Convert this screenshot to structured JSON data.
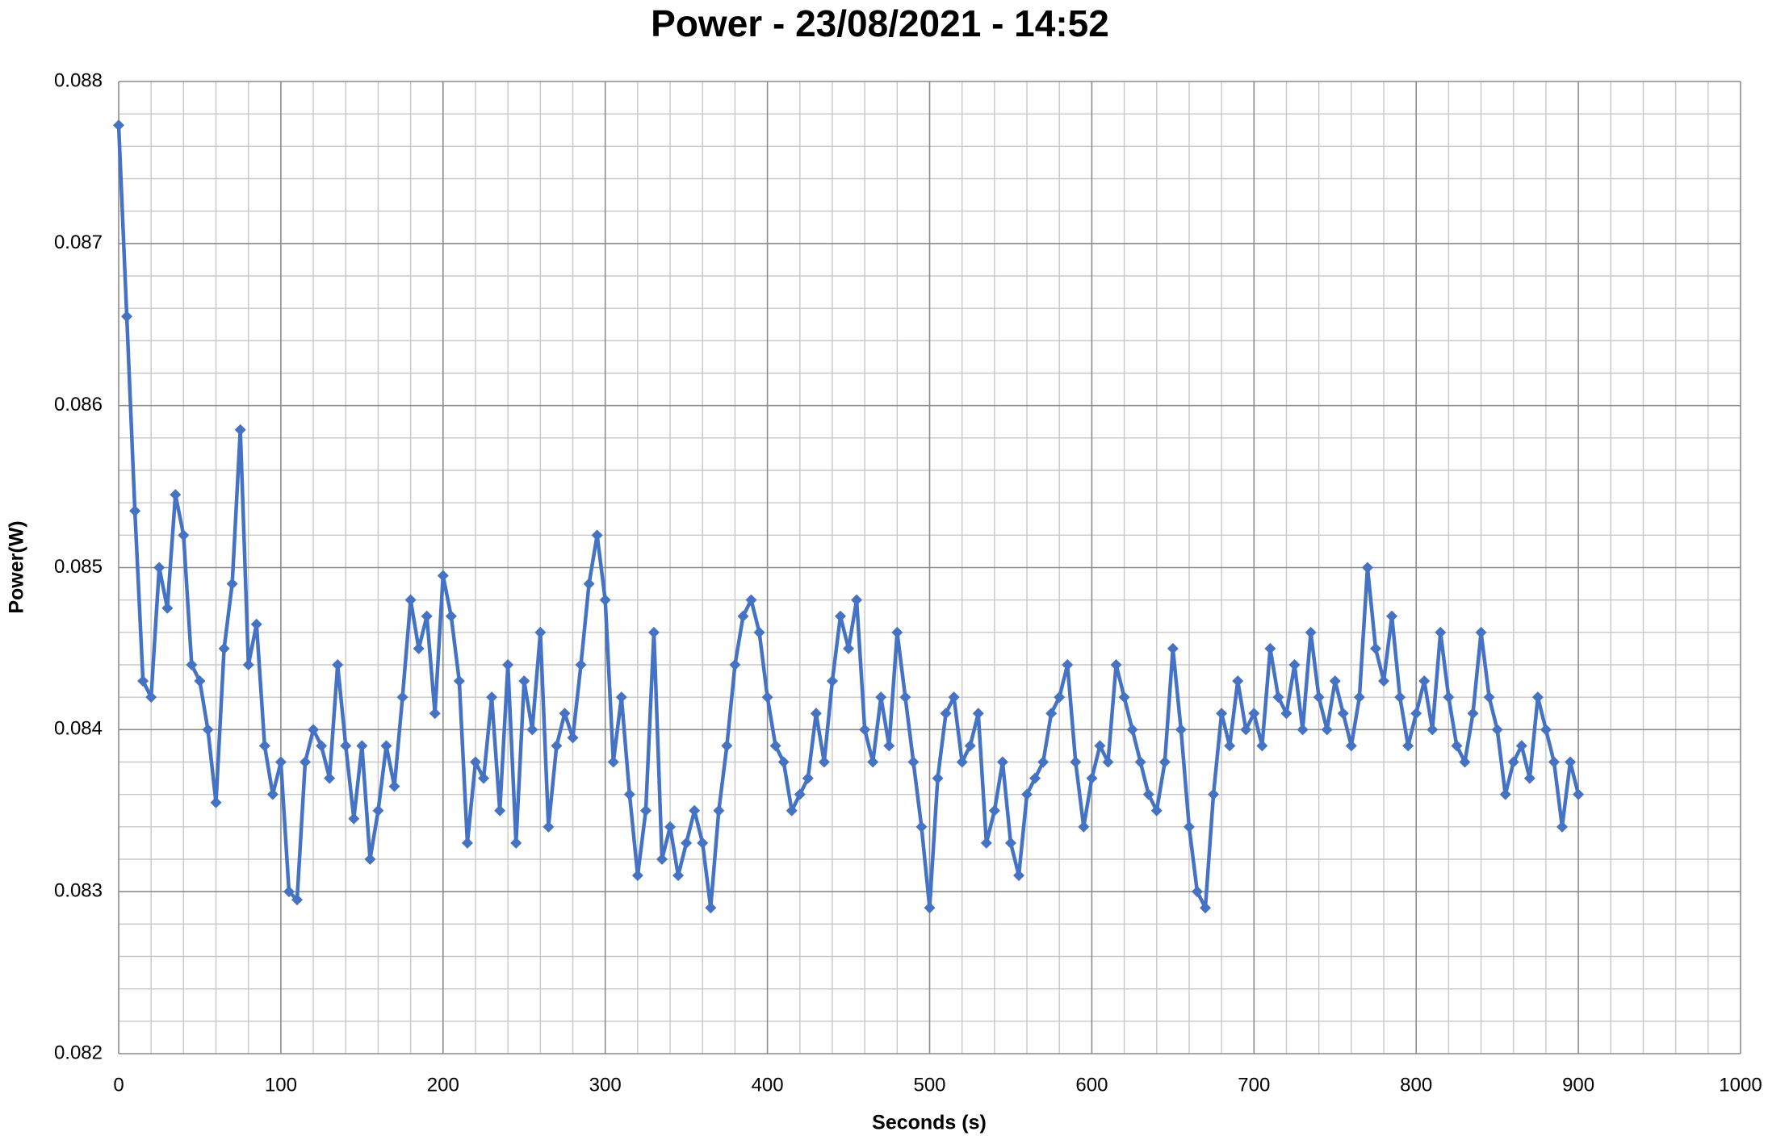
{
  "chart_data": {
    "type": "line",
    "title": "Power - 23/08/2021 - 14:52",
    "x_label": "Seconds (s)",
    "y_label": "Power(W)",
    "xlim": [
      0,
      1000
    ],
    "xticks": [
      0,
      100,
      200,
      300,
      400,
      500,
      600,
      700,
      800,
      900,
      1000
    ],
    "ylim": [
      0.082,
      0.088
    ],
    "yticks": [
      0.082,
      0.083,
      0.084,
      0.085,
      0.086,
      0.087,
      0.088
    ],
    "grid": true,
    "minor_grid": true,
    "marker": "diamond",
    "x": [
      0,
      5,
      10,
      15,
      20,
      25,
      30,
      35,
      40,
      45,
      50,
      55,
      60,
      65,
      70,
      75,
      80,
      85,
      90,
      95,
      100,
      105,
      110,
      115,
      120,
      125,
      130,
      135,
      140,
      145,
      150,
      155,
      160,
      165,
      170,
      175,
      180,
      185,
      190,
      195,
      200,
      205,
      210,
      215,
      220,
      225,
      230,
      235,
      240,
      245,
      250,
      255,
      260,
      265,
      270,
      275,
      280,
      285,
      290,
      295,
      300,
      305,
      310,
      315,
      320,
      325,
      330,
      335,
      340,
      345,
      350,
      355,
      360,
      365,
      370,
      375,
      380,
      385,
      390,
      395,
      400,
      405,
      410,
      415,
      420,
      425,
      430,
      435,
      440,
      445,
      450,
      455,
      460,
      465,
      470,
      475,
      480,
      485,
      490,
      495,
      500,
      505,
      510,
      515,
      520,
      525,
      530,
      535,
      540,
      545,
      550,
      555,
      560,
      565,
      570,
      575,
      580,
      585,
      590,
      595,
      600,
      605,
      610,
      615,
      620,
      625,
      630,
      635,
      640,
      645,
      650,
      655,
      660,
      665,
      670,
      675,
      680,
      685,
      690,
      695,
      700,
      705,
      710,
      715,
      720,
      725,
      730,
      735,
      740,
      745,
      750,
      755,
      760,
      765,
      770,
      775,
      780,
      785,
      790,
      795,
      800,
      805,
      810,
      815,
      820,
      825,
      830,
      835,
      840,
      845,
      850,
      855,
      860,
      865,
      870,
      875,
      880,
      885,
      890,
      895,
      900
    ],
    "series": [
      {
        "name": "Power",
        "color": "#4472c4",
        "values": [
          0.08773,
          0.08655,
          0.08535,
          0.0843,
          0.0842,
          0.085,
          0.08475,
          0.08545,
          0.0852,
          0.0844,
          0.0843,
          0.084,
          0.08355,
          0.0845,
          0.0849,
          0.08585,
          0.0844,
          0.08465,
          0.0839,
          0.0836,
          0.0838,
          0.083,
          0.08295,
          0.0838,
          0.084,
          0.0839,
          0.0837,
          0.0844,
          0.0839,
          0.08345,
          0.0839,
          0.0832,
          0.0835,
          0.0839,
          0.08365,
          0.0842,
          0.0848,
          0.0845,
          0.0847,
          0.0841,
          0.08495,
          0.0847,
          0.0843,
          0.0833,
          0.0838,
          0.0837,
          0.0842,
          0.0835,
          0.0844,
          0.0833,
          0.0843,
          0.084,
          0.0846,
          0.0834,
          0.0839,
          0.0841,
          0.08395,
          0.0844,
          0.0849,
          0.0852,
          0.0848,
          0.0838,
          0.0842,
          0.0836,
          0.0831,
          0.0835,
          0.0846,
          0.0832,
          0.0834,
          0.0831,
          0.0833,
          0.0835,
          0.0833,
          0.0829,
          0.0835,
          0.0839,
          0.0844,
          0.0847,
          0.0848,
          0.0846,
          0.0842,
          0.0839,
          0.0838,
          0.0835,
          0.0836,
          0.0837,
          0.0841,
          0.0838,
          0.0843,
          0.0847,
          0.0845,
          0.0848,
          0.084,
          0.0838,
          0.0842,
          0.0839,
          0.0846,
          0.0842,
          0.0838,
          0.0834,
          0.0829,
          0.0837,
          0.0841,
          0.0842,
          0.0838,
          0.0839,
          0.0841,
          0.0833,
          0.0835,
          0.0838,
          0.0833,
          0.0831,
          0.0836,
          0.0837,
          0.0838,
          0.0841,
          0.0842,
          0.0844,
          0.0838,
          0.0834,
          0.0837,
          0.0839,
          0.0838,
          0.0844,
          0.0842,
          0.084,
          0.0838,
          0.0836,
          0.0835,
          0.0838,
          0.0845,
          0.084,
          0.0834,
          0.083,
          0.0829,
          0.0836,
          0.0841,
          0.0839,
          0.0843,
          0.084,
          0.0841,
          0.0839,
          0.0845,
          0.0842,
          0.0841,
          0.0844,
          0.084,
          0.0846,
          0.0842,
          0.084,
          0.0843,
          0.0841,
          0.0839,
          0.0842,
          0.085,
          0.0845,
          0.0843,
          0.0847,
          0.0842,
          0.0839,
          0.0841,
          0.0843,
          0.084,
          0.0846,
          0.0842,
          0.0839,
          0.0838,
          0.0841,
          0.0846,
          0.0842,
          0.084,
          0.0836,
          0.0838,
          0.0839,
          0.0837,
          0.0842,
          0.084,
          0.0838,
          0.0834,
          0.0838,
          0.0836
        ]
      }
    ]
  }
}
